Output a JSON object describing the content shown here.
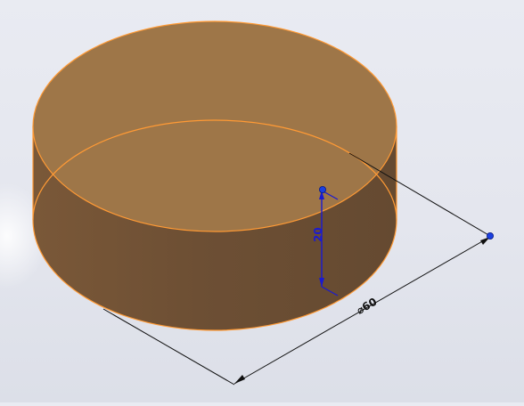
{
  "viewport": {
    "background": "#e6e8f0"
  },
  "part": {
    "shape": "cylinder",
    "face_color": "#9c7448",
    "side_color": "#6f5036",
    "edge_color": "#ff9f3a"
  },
  "dimensions": {
    "height": {
      "value": "20",
      "color": "#1a1ad0",
      "handle_icon": "dimension-handle-icon"
    },
    "diameter": {
      "symbol": "⌀",
      "value": "60",
      "text": "⌀60",
      "color": "#101010",
      "handle_icon": "dimension-handle-icon"
    }
  }
}
